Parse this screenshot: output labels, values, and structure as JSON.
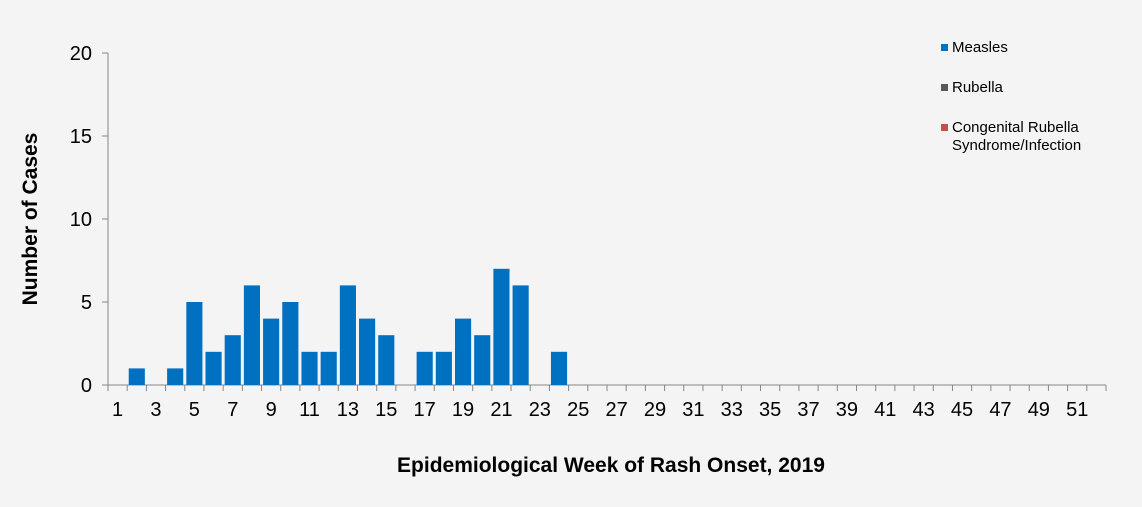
{
  "chart_data": {
    "type": "bar",
    "xlabel": "Epidemiological Week of Rash Onset, 2019",
    "ylabel": "Number of Cases",
    "ylim": [
      0,
      20
    ],
    "y_ticks": [
      0,
      5,
      10,
      15,
      20
    ],
    "x_range": [
      1,
      52
    ],
    "x_tick_labels": [
      1,
      3,
      5,
      7,
      9,
      11,
      13,
      15,
      17,
      19,
      21,
      23,
      25,
      27,
      29,
      31,
      33,
      35,
      37,
      39,
      41,
      43,
      45,
      47,
      49,
      51
    ],
    "grid": false,
    "legend_position": "top-right",
    "stacked": true,
    "series": [
      {
        "name": "Measles",
        "color": "#0070c0",
        "x": [
          2,
          4,
          5,
          6,
          7,
          8,
          9,
          10,
          11,
          12,
          13,
          14,
          15,
          17,
          18,
          19,
          20,
          21,
          22,
          24
        ],
        "values": [
          1,
          1,
          5,
          2,
          3,
          6,
          4,
          5,
          2,
          2,
          6,
          4,
          3,
          2,
          2,
          4,
          3,
          7,
          6,
          2
        ]
      },
      {
        "name": "Rubella",
        "color": "#595959",
        "x": [],
        "values": []
      },
      {
        "name": "Congenital Rubella Syndrome/Infection",
        "legend_lines": [
          "Congenital Rubella",
          "Syndrome/Infection"
        ],
        "color": "#c0504d",
        "x": [],
        "values": []
      }
    ]
  }
}
